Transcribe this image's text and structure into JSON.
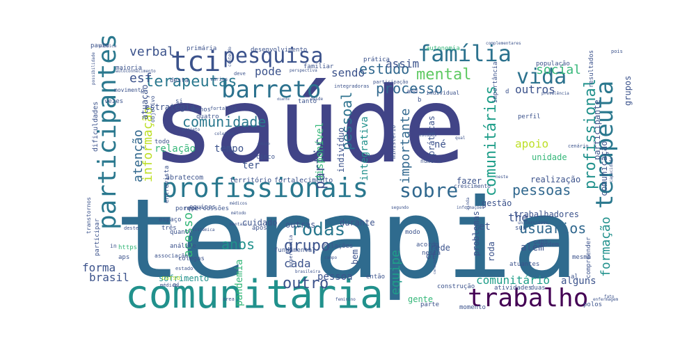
{
  "words": [
    {
      "text": "saúde",
      "color": "#414487"
    },
    {
      "text": "terapia",
      "color": "#2f6b8e"
    },
    {
      "text": "comunitária",
      "color": "#21918c"
    },
    {
      "text": "profissionais",
      "color": "#2a788e"
    },
    {
      "text": "participantes",
      "color": "#2a788e"
    },
    {
      "text": "terapeuta",
      "color": "#2a788e"
    },
    {
      "text": "trabalho",
      "color": "#440154"
    },
    {
      "text": "pesquisa",
      "color": "#3b528b"
    },
    {
      "text": "tci",
      "color": "#3b528b"
    },
    {
      "text": "família",
      "color": "#2c728e"
    },
    {
      "text": "barreto",
      "color": "#2c728e"
    },
    {
      "text": "vida",
      "color": "#2c728e"
    },
    {
      "text": "sobre",
      "color": "#31688e"
    },
    {
      "text": "profissional",
      "color": "#21918c"
    },
    {
      "text": "comunitários",
      "color": "#1f9e89"
    },
    {
      "text": "terapeutas",
      "color": "#2a788e"
    },
    {
      "text": "comunidade",
      "color": "#2a788e"
    },
    {
      "text": "rodas",
      "color": "#2a788e"
    },
    {
      "text": "estudo",
      "color": "#31688e"
    },
    {
      "text": "social",
      "color": "#35b779"
    },
    {
      "text": "mental",
      "color": "#5ec962"
    },
    {
      "text": "processo",
      "color": "#31688e"
    },
    {
      "text": "pessoas",
      "color": "#31688e"
    },
    {
      "text": "formação",
      "color": "#21918c"
    },
    {
      "text": "partir",
      "color": "#3b528b"
    },
    {
      "text": "grupo",
      "color": "#3b528b"
    },
    {
      "text": "equipe",
      "color": "#1f9e89"
    },
    {
      "text": "acesso",
      "color": "#35b779"
    },
    {
      "text": "outro",
      "color": "#3b528b"
    },
    {
      "text": "usuários",
      "color": "#31688e"
    },
    {
      "text": "verbal",
      "color": "#3b528b"
    },
    {
      "text": "importante",
      "color": "#31688e"
    },
    {
      "text": "pessoal",
      "color": "#2c728e"
    },
    {
      "text": "atenção",
      "color": "#31688e"
    },
    {
      "text": "informação",
      "color": "#bddf26"
    },
    {
      "text": "anos",
      "color": "#21918c"
    },
    {
      "text": "esf",
      "color": "#3b528b"
    },
    {
      "text": "pode",
      "color": "#3b528b"
    },
    {
      "text": "sendo",
      "color": "#3b528b"
    },
    {
      "text": "assim",
      "color": "#3b528b"
    },
    {
      "text": "forma",
      "color": "#3b528b"
    },
    {
      "text": "brasil",
      "color": "#3b528b"
    },
    {
      "text": "cada",
      "color": "#3b528b"
    },
    {
      "text": "comunitário",
      "color": "#1f9e89"
    },
    {
      "text": "outros",
      "color": "#3b528b"
    },
    {
      "text": "apoio",
      "color": "#bddf26"
    },
    {
      "text": "tempo",
      "color": "#3b528b"
    },
    {
      "text": "relação",
      "color": "#35b779"
    },
    {
      "text": "integrativa",
      "color": "#21918c"
    },
    {
      "text": "disponível",
      "color": "#35b779"
    },
    {
      "text": "indivíduo",
      "color": "#3b528b"
    },
    {
      "text": "práticas",
      "color": "#3b528b"
    },
    {
      "text": "ter",
      "color": "#3b528b"
    },
    {
      "text": "the",
      "color": "#3b528b"
    },
    {
      "text": "pessoa",
      "color": "#3b528b"
    },
    {
      "text": "sofrimento",
      "color": "#21918c"
    },
    {
      "text": "alguns",
      "color": "#3b528b"
    },
    {
      "text": "pandemia",
      "color": "#35b779"
    },
    {
      "text": "cuidado",
      "color": "#3b528b"
    },
    {
      "text": "outras",
      "color": "#3b528b"
    },
    {
      "text": "durante",
      "color": "#3b528b"
    },
    {
      "text": "além",
      "color": "#3b528b"
    },
    {
      "text": "rede",
      "color": "#3b528b"
    },
    {
      "text": "estratégia",
      "color": "#3b528b"
    },
    {
      "text": "atuação",
      "color": "#3b528b"
    },
    {
      "text": "unidade",
      "color": "#35b779"
    },
    {
      "text": "realização",
      "color": "#3b528b"
    },
    {
      "text": "gestão",
      "color": "#3b528b"
    },
    {
      "text": "trabalhadores",
      "color": "#3b528b"
    },
    {
      "text": "problemas",
      "color": "#3b528b"
    },
    {
      "text": "fazer",
      "color": "#3b528b"
    },
    {
      "text": "comunicação",
      "color": "#3b528b"
    },
    {
      "text": "grupos",
      "color": "#3b528b"
    },
    {
      "text": "participante",
      "color": "#3b528b"
    },
    {
      "text": "of",
      "color": "#3b528b"
    },
    {
      "text": "et",
      "color": "#3b528b"
    },
    {
      "text": "bem",
      "color": "#3b528b"
    },
    {
      "text": "roda",
      "color": "#3b528b"
    },
    {
      "text": "dificuldades",
      "color": "#3b528b"
    },
    {
      "text": "território",
      "color": "#3b528b"
    },
    {
      "text": "fortalecimento",
      "color": "#3b528b"
    },
    {
      "text": "abratecom",
      "color": "#3b528b"
    },
    {
      "text": "entrevista",
      "color": "#3b528b"
    },
    {
      "text": "desenvolvimento",
      "color": "#3b528b"
    },
    {
      "text": "autonomia",
      "color": "#35b779"
    },
    {
      "text": "população",
      "color": "#3b528b"
    },
    {
      "text": "prática",
      "color": "#3b528b"
    },
    {
      "text": "familiar",
      "color": "#3b528b"
    },
    {
      "text": "maioria",
      "color": "#3b528b"
    },
    {
      "text": "paulo",
      "color": "#3b528b"
    },
    {
      "text": "primária",
      "color": "#3b528b"
    },
    {
      "text": "desta",
      "color": "#3b528b"
    },
    {
      "text": "movimento",
      "color": "#3b528b"
    },
    {
      "text": "vezes",
      "color": "#3b528b"
    },
    {
      "text": "menos",
      "color": "#3b528b"
    },
    {
      "text": "quatro",
      "color": "#3b528b"
    },
    {
      "text": "todo",
      "color": "#3b528b"
    },
    {
      "text": "cinco",
      "color": "#3b528b"
    },
    {
      "text": "repercussões",
      "color": "#3b528b"
    },
    {
      "text": "porque",
      "color": "#3b528b"
    },
    {
      "text": "equipes",
      "color": "#3b528b"
    },
    {
      "text": "espaço",
      "color": "#3b528b"
    },
    {
      "text": "três",
      "color": "#3b528b"
    },
    {
      "text": "após",
      "color": "#3b528b"
    },
    {
      "text": "relações",
      "color": "#3b528b"
    },
    {
      "text": "modo",
      "color": "#3b528b"
    },
    {
      "text": "acordo",
      "color": "#3b528b"
    },
    {
      "text": "nesta",
      "color": "#3b528b"
    },
    {
      "text": "caps",
      "color": "#3b528b"
    },
    {
      "text": "podem",
      "color": "#3b528b"
    },
    {
      "text": "atuantes",
      "color": "#3b528b"
    },
    {
      "text": "mesma",
      "color": "#3b528b"
    },
    {
      "text": "compreender",
      "color": "#3b528b"
    },
    {
      "text": "fundamental",
      "color": "#3b528b"
    },
    {
      "text": "colegas",
      "color": "#3b528b"
    },
    {
      "text": "análise",
      "color": "#3b528b"
    },
    {
      "text": "quanto",
      "color": "#3b528b"
    },
    {
      "text": "participar",
      "color": "#3b528b"
    },
    {
      "text": "associação",
      "color": "#3b528b"
    },
    {
      "text": "https",
      "color": "#35b779"
    },
    {
      "text": "aps",
      "color": "#3b528b"
    },
    {
      "text": "curso",
      "color": "#bddf26"
    },
    {
      "text": "estado",
      "color": "#3b528b"
    },
    {
      "text": "então",
      "color": "#3b528b"
    },
    {
      "text": "construção",
      "color": "#3b528b"
    },
    {
      "text": "atividades",
      "color": "#3b528b"
    },
    {
      "text": "duas",
      "color": "#3b528b"
    },
    {
      "text": "gente",
      "color": "#35b779"
    },
    {
      "text": "parte",
      "color": "#3b528b"
    },
    {
      "text": "momento",
      "color": "#3b528b"
    },
    {
      "text": "polos",
      "color": "#3b528b"
    },
    {
      "text": "perfil",
      "color": "#3b528b"
    },
    {
      "text": "número",
      "color": "#3b528b"
    },
    {
      "text": "crescimento",
      "color": "#3b528b"
    },
    {
      "text": "objetivo",
      "color": "#3b528b"
    },
    {
      "text": "individual",
      "color": "#3b528b"
    },
    {
      "text": "tanto",
      "color": "#3b528b"
    },
    {
      "text": "importância",
      "color": "#3b528b"
    },
    {
      "text": "resultados",
      "color": "#3b528b"
    },
    {
      "text": "al",
      "color": "#3b528b"
    },
    {
      "text": "sus",
      "color": "#3b528b"
    },
    {
      "text": "né",
      "color": "#3b528b"
    },
    {
      "text": "si",
      "color": "#3b528b"
    },
    {
      "text": "ministério",
      "color": "#3b528b"
    },
    {
      "text": "integradoras",
      "color": "#3b528b"
    },
    {
      "text": "in",
      "color": "#3b528b"
    },
    {
      "text": "transtornos",
      "color": "#3b528b"
    },
    {
      "text": "segundo",
      "color": "#3b528b"
    },
    {
      "text": "informações",
      "color": "#3b528b"
    },
    {
      "text": "universidade",
      "color": "#3b528b"
    },
    {
      "text": "características",
      "color": "#3b528b"
    },
    {
      "text": "feminino",
      "color": "#3b528b"
    },
    {
      "text": "enfermagem",
      "color": "#3b528b"
    },
    {
      "text": "possibilidade",
      "color": "#3b528b"
    },
    {
      "text": "complementares",
      "color": "#3b528b"
    },
    {
      "text": "participação",
      "color": "#3b528b"
    },
    {
      "text": "fortaleza",
      "color": "#3b528b"
    },
    {
      "text": "prevalência",
      "color": "#3b528b"
    },
    {
      "text": "sistêmica",
      "color": "#3b528b"
    },
    {
      "text": "brasileira",
      "color": "#3b528b"
    },
    {
      "text": "experiência",
      "color": "#3b528b"
    },
    {
      "text": "médica",
      "color": "#3b528b"
    },
    {
      "text": "área",
      "color": "#3b528b"
    },
    {
      "text": "deste",
      "color": "#3b528b"
    },
    {
      "text": "autoconhecimento",
      "color": "#3b528b"
    },
    {
      "text": "perspectiva",
      "color": "#3b528b"
    },
    {
      "text": "várias",
      "color": "#3b528b"
    },
    {
      "text": "deve",
      "color": "#3b528b"
    },
    {
      "text": "pois",
      "color": "#3b528b"
    },
    {
      "text": "pública",
      "color": "#3b528b"
    },
    {
      "text": "b",
      "color": "#3b528b"
    },
    {
      "text": "and",
      "color": "#3b528b"
    },
    {
      "text": "d",
      "color": "#3b528b"
    },
    {
      "text": "ai",
      "color": "#3b528b"
    },
    {
      "text": "neste",
      "color": "#3b528b"
    },
    {
      "text": "ainda",
      "color": "#3b528b"
    },
    {
      "text": "diante",
      "color": "#3b528b"
    },
    {
      "text": "desde",
      "color": "#3b528b"
    },
    {
      "text": "projeto",
      "color": "#3b528b"
    },
    {
      "text": "cenário",
      "color": "#3b528b"
    },
    {
      "text": "campo",
      "color": "#3b528b"
    },
    {
      "text": "médicos",
      "color": "#3b528b"
    },
    {
      "text": "método",
      "color": "#3b528b"
    },
    {
      "text": "coletiva",
      "color": "#3b528b"
    },
    {
      "text": "edição",
      "color": "#3b528b"
    },
    {
      "text": "mentais",
      "color": "#3b528b"
    },
    {
      "text": "fato",
      "color": "#3b528b"
    },
    {
      "text": "capacidade",
      "color": "#3b528b"
    },
    {
      "text": "qual",
      "color": "#3b528b"
    },
    {
      "text": "estudos",
      "color": "#3b528b"
    },
    {
      "text": "conteúdo",
      "color": "#3b528b"
    }
  ]
}
